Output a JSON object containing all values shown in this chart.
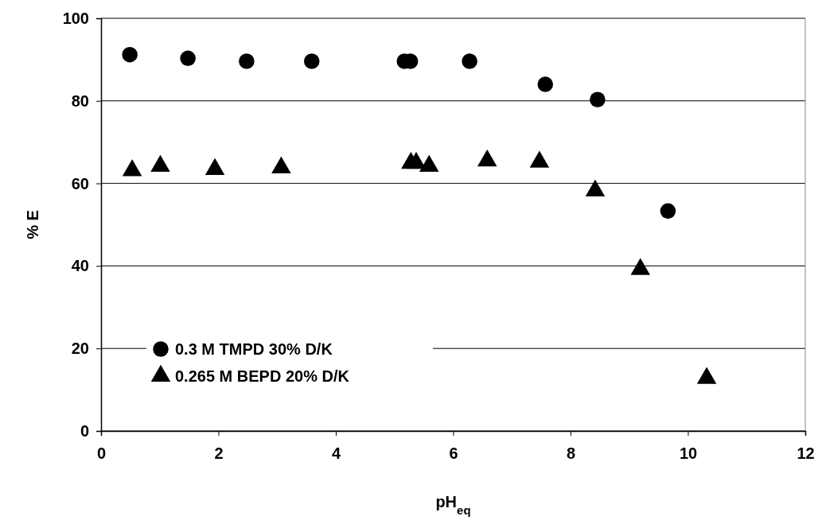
{
  "chart_data": {
    "type": "scatter",
    "xlabel": "pH$_{eq}$",
    "ylabel": "% E",
    "xlim": [
      0,
      12
    ],
    "xticks": [
      0,
      2,
      4,
      6,
      8,
      10,
      12
    ],
    "ylim": [
      0,
      100
    ],
    "yticks": [
      0,
      20,
      40,
      60,
      80,
      100
    ],
    "grid": "y",
    "legend": "bottom left",
    "series": [
      {
        "name": "0.3 M TMPD 30% D/K",
        "color": "#000000",
        "marker": "circle",
        "x": [
          0.49,
          1.48,
          2.48,
          3.59,
          5.17,
          5.27,
          6.28,
          7.57,
          8.46,
          9.66
        ],
        "values": [
          91.2,
          90.3,
          89.6,
          89.6,
          89.6,
          89.6,
          89.6,
          84.0,
          80.3,
          53.3
        ]
      },
      {
        "name": "0.265 M BEPD 20% D/K",
        "color": "#000000",
        "marker": "triangle",
        "x": [
          0.53,
          1.01,
          1.94,
          3.07,
          5.28,
          5.37,
          5.59,
          6.58,
          7.47,
          8.42,
          9.19,
          10.32
        ],
        "values": [
          63.1,
          64.2,
          63.4,
          63.8,
          64.9,
          64.9,
          64.2,
          65.5,
          65.2,
          58.2,
          39.2,
          12.8
        ]
      }
    ]
  }
}
